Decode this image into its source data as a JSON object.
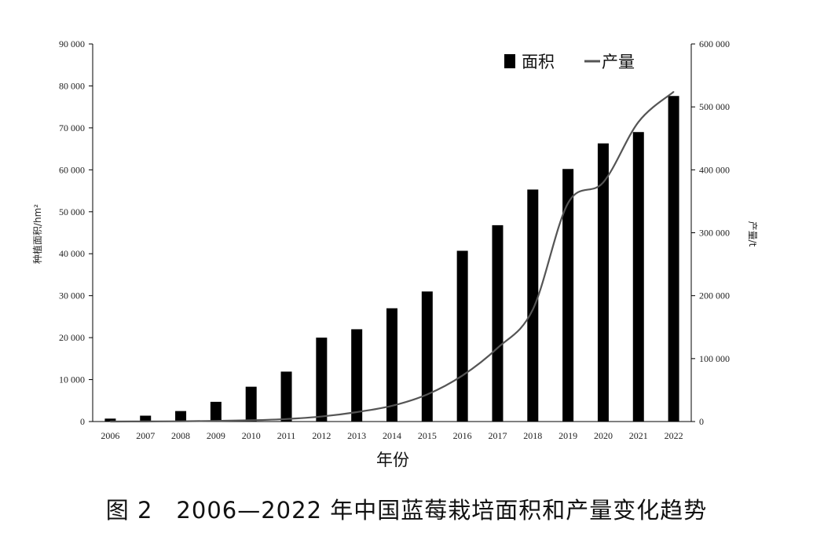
{
  "chart_data": {
    "type": "bar",
    "categories": [
      "2006",
      "2007",
      "2008",
      "2009",
      "2010",
      "2011",
      "2012",
      "2013",
      "2014",
      "2015",
      "2016",
      "2017",
      "2018",
      "2019",
      "2020",
      "2021",
      "2022"
    ],
    "series": [
      {
        "name": "面积",
        "type": "bar",
        "axis": "left",
        "values": [
          700,
          1400,
          2500,
          4700,
          8300,
          11900,
          20000,
          22000,
          27000,
          31000,
          40700,
          46800,
          55300,
          60200,
          66300,
          69000,
          77600
        ]
      },
      {
        "name": "产量",
        "type": "line",
        "axis": "right",
        "values": [
          0,
          200,
          400,
          1000,
          2000,
          4000,
          8000,
          15000,
          25000,
          43000,
          73000,
          117000,
          178000,
          347000,
          380000,
          476000,
          524000
        ]
      }
    ],
    "xlabel": "年份",
    "ylabel": "种植面积/hm²",
    "y2label": "产量/t",
    "ylim": [
      0,
      90000
    ],
    "y2lim": [
      0,
      600000
    ],
    "yticks": [
      "0",
      "10 000",
      "20 000",
      "30 000",
      "40 000",
      "50 000",
      "60 000",
      "70 000",
      "80 000",
      "90 000"
    ],
    "y2ticks": [
      "0",
      "100 000",
      "200 000",
      "300 000",
      "400 000",
      "500 000",
      "600 000"
    ],
    "legend_placement": "top-right",
    "grid": false,
    "colors": {
      "bar": "#000000",
      "line": "#555555"
    }
  },
  "caption": "图 2　2006—2022 年中国蓝莓栽培面积和产量变化趋势"
}
